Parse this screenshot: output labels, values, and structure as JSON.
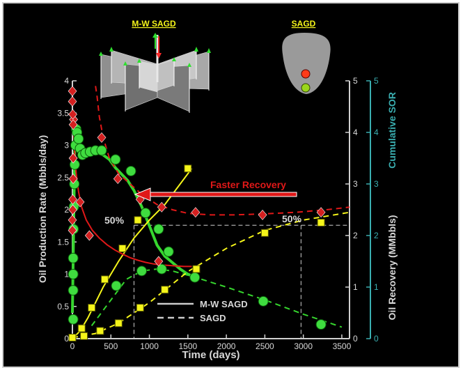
{
  "chart_data": {
    "type": "line",
    "title": "",
    "xlabel": "Time (days)",
    "ylabel_left": "Oil Production Rate (Mbbls/day)",
    "ylabel_right_inner": "Oil Recovery (MMbbls)",
    "ylabel_right_outer": "Cumulative SOR",
    "xlim": [
      0,
      3600
    ],
    "ylim_left": [
      0,
      4
    ],
    "ylim_right": [
      0,
      5
    ],
    "x_ticks": [
      "0",
      "500",
      "1000",
      "1500",
      "2000",
      "2500",
      "3000",
      "3500"
    ],
    "y_ticks_left": [
      "0",
      "0.5",
      "1",
      "1.5",
      "2",
      "2.5",
      "3",
      "3.5",
      "4"
    ],
    "y_ticks_right": [
      "0",
      "1",
      "2",
      "3",
      "4",
      "5"
    ],
    "grid": false,
    "legend": {
      "position": "bottom-center",
      "entries": [
        {
          "label": "M-W SAGD",
          "style": "solid",
          "color": "#cccccc"
        },
        {
          "label": "SAGD",
          "style": "dashed",
          "color": "#cccccc"
        }
      ]
    },
    "series": [
      {
        "name": "M-W SAGD",
        "quantity": "Oil Production Rate",
        "axis": "left",
        "style": "solid",
        "color": "#36d62e",
        "x": [
          0,
          30,
          60,
          100,
          150,
          200,
          260,
          330,
          400,
          480,
          560,
          640,
          720,
          800,
          900,
          1000,
          1100,
          1200,
          1300,
          1400,
          1500,
          1600
        ],
        "y": [
          0.4,
          2.9,
          3.05,
          2.9,
          2.85,
          2.85,
          2.88,
          2.88,
          2.85,
          2.78,
          2.65,
          2.55,
          2.45,
          2.3,
          2.05,
          1.75,
          1.45,
          1.28,
          1.18,
          1.08,
          1.0,
          0.95
        ],
        "markers": {
          "x": [
            10,
            10,
            10,
            10,
            15,
            20,
            25,
            30,
            40,
            50,
            60,
            80,
            100,
            130,
            170,
            230,
            300,
            380,
            560,
            760,
            950,
            1120,
            1250,
            1590
          ],
          "y": [
            0.3,
            0.75,
            1.0,
            1.25,
            1.7,
            2.05,
            2.4,
            2.7,
            3.0,
            3.25,
            3.2,
            3.1,
            2.95,
            2.85,
            2.88,
            2.9,
            2.92,
            2.92,
            2.78,
            2.6,
            1.95,
            1.7,
            1.35,
            0.95
          ]
        }
      },
      {
        "name": "SAGD",
        "quantity": "Oil Production Rate",
        "axis": "left",
        "style": "dashed",
        "color": "#36d62e",
        "x": [
          250,
          500,
          700,
          900,
          1100,
          1300,
          1600,
          2000,
          2500,
          3000,
          3500
        ],
        "y": [
          0.2,
          0.6,
          0.92,
          1.05,
          1.08,
          1.05,
          0.95,
          0.8,
          0.6,
          0.38,
          0.18
        ],
        "markers": {
          "x": [
            570,
            900,
            1160,
            2480,
            3230
          ],
          "y": [
            0.82,
            1.05,
            1.08,
            0.58,
            0.22
          ]
        }
      },
      {
        "name": "M-W SAGD",
        "quantity": "Oil Recovery",
        "axis": "right",
        "style": "solid",
        "color": "#f5f51a",
        "x": [
          0,
          100,
          200,
          300,
          400,
          600,
          800,
          1000,
          1200,
          1550
        ],
        "y": [
          0,
          0.15,
          0.4,
          0.7,
          1.0,
          1.5,
          1.95,
          2.3,
          2.6,
          3.3
        ],
        "markers": {
          "x": [
            120,
            250,
            420,
            650,
            850,
            1500
          ],
          "y": [
            0.2,
            0.6,
            1.15,
            1.75,
            2.3,
            3.3
          ]
        }
      },
      {
        "name": "SAGD",
        "quantity": "Oil Recovery",
        "axis": "right",
        "style": "dashed",
        "color": "#f5f51a",
        "x": [
          0,
          300,
          600,
          1000,
          1500,
          2000,
          2500,
          3000,
          3600
        ],
        "y": [
          0.02,
          0.1,
          0.3,
          0.7,
          1.3,
          1.75,
          2.1,
          2.3,
          2.45
        ],
        "markers": {
          "x": [
            0,
            150,
            360,
            600,
            880,
            1200,
            1610,
            2500,
            3230
          ],
          "y": [
            0.02,
            0.05,
            0.15,
            0.3,
            0.6,
            0.95,
            1.35,
            2.05,
            2.25
          ]
        }
      },
      {
        "name": "M-W SAGD",
        "quantity": "Cumulative SOR",
        "axis": "right",
        "style": "solid",
        "color": "#e01818",
        "x": [
          15,
          30,
          50,
          80,
          120,
          180,
          260,
          350,
          450,
          550,
          650,
          750,
          850,
          950,
          1050,
          1150,
          1250,
          1350,
          1450,
          1550
        ],
        "y": [
          4.0,
          3.6,
          3.2,
          2.85,
          2.55,
          2.3,
          2.1,
          1.95,
          1.82,
          1.72,
          1.64,
          1.57,
          1.52,
          1.48,
          1.45,
          1.43,
          1.42,
          1.41,
          1.4,
          1.4
        ],
        "markers": {
          "x": [
            0,
            0,
            5,
            5,
            10,
            10,
            15,
            100,
            220,
            1120
          ],
          "y": [
            2.1,
            2.3,
            2.5,
            2.7,
            3.1,
            3.5,
            4.25,
            2.65,
            2.0,
            1.5
          ]
        }
      },
      {
        "name": "SAGD",
        "quantity": "Cumulative SOR",
        "axis": "right",
        "style": "dashed",
        "color": "#e01818",
        "x": [
          300,
          320,
          350,
          400,
          480,
          600,
          750,
          900,
          1100,
          1300,
          1500,
          1800,
          2100,
          2500,
          2900,
          3300,
          3600
        ],
        "y": [
          4.9,
          4.7,
          4.3,
          3.9,
          3.5,
          3.2,
          3.0,
          2.8,
          2.6,
          2.5,
          2.43,
          2.4,
          2.4,
          2.42,
          2.45,
          2.5,
          2.55
        ],
        "markers": {
          "x": [
            0,
            0,
            5,
            10,
            380,
            590,
            880,
            1160,
            1600,
            2470,
            3230
          ],
          "y": [
            4.8,
            4.6,
            4.35,
            4.15,
            3.9,
            3.1,
            2.7,
            2.55,
            2.45,
            2.4,
            2.45
          ]
        }
      }
    ],
    "reference_lines": [
      {
        "label": "50%",
        "recovery": 2.2,
        "x_end": 800
      },
      {
        "label": "50%",
        "recovery": 2.2,
        "x_end": 2970
      }
    ],
    "annotations": [
      {
        "text": "Faster Recovery",
        "color": "#e01818"
      },
      {
        "text": "M-W SAGD",
        "color": "#f5f51a"
      },
      {
        "text": "SAGD",
        "color": "#f5f51a"
      }
    ]
  }
}
